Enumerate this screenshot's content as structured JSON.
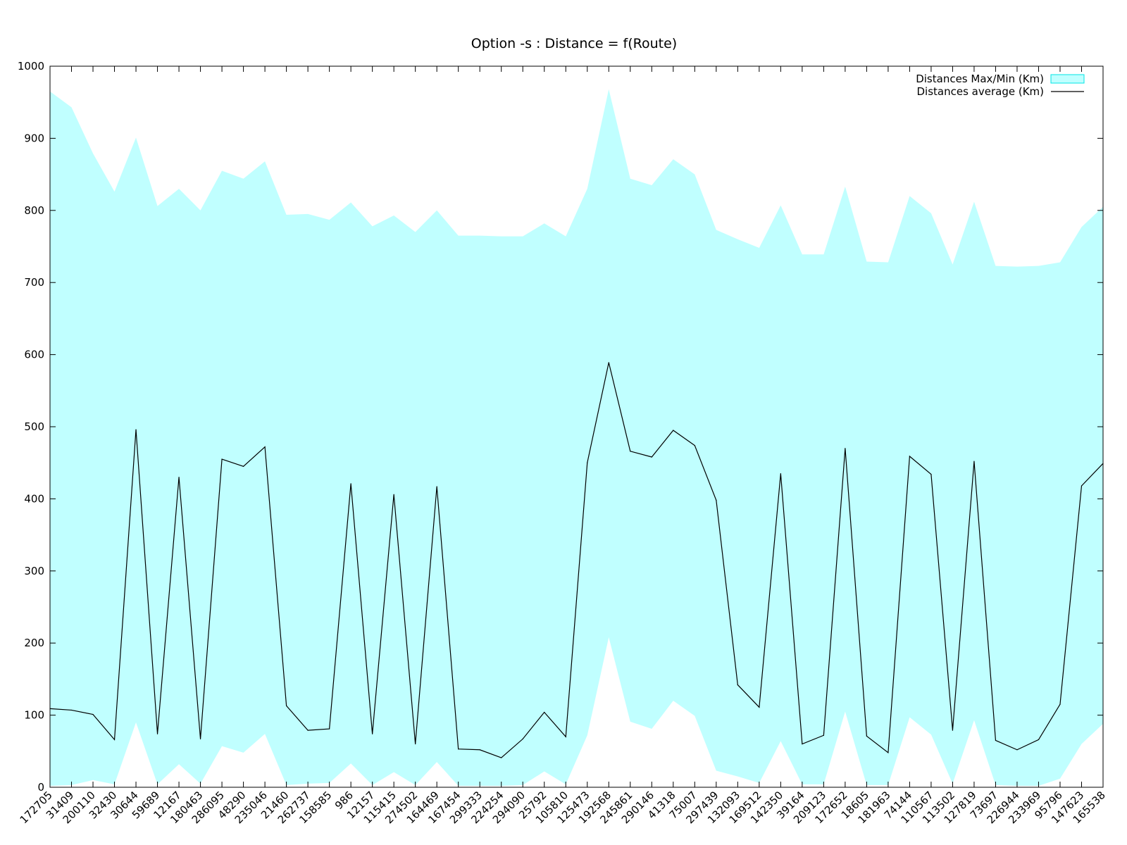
{
  "chart_data": {
    "type": "area",
    "title": "Option -s : Distance = f(Route)",
    "xlabel": "",
    "ylabel": "",
    "ylim": [
      0,
      1000
    ],
    "yticks": [
      0,
      100,
      200,
      300,
      400,
      500,
      600,
      700,
      800,
      900,
      1000
    ],
    "grid": false,
    "legend_position": "top-right",
    "categories": [
      "172705",
      "31409",
      "200110",
      "32430",
      "30644",
      "59689",
      "12167",
      "180463",
      "286095",
      "48290",
      "235046",
      "21460",
      "262737",
      "158585",
      "986",
      "12157",
      "115415",
      "274502",
      "164469",
      "167454",
      "299333",
      "224254",
      "294090",
      "25792",
      "105810",
      "125473",
      "192568",
      "245861",
      "290146",
      "41318",
      "75007",
      "297439",
      "132093",
      "169512",
      "142350",
      "39164",
      "209123",
      "172652",
      "18605",
      "181963",
      "74144",
      "110567",
      "113502",
      "127819",
      "73697",
      "226944",
      "233969",
      "95796",
      "147623",
      "165538"
    ],
    "series": [
      {
        "name": "Distances Max/Min (Km)",
        "kind": "band",
        "color": "#c0ffff",
        "legend_border": "#00e5e5",
        "max": [
          965,
          943,
          879,
          826,
          901,
          806,
          830,
          800,
          855,
          844,
          868,
          794,
          795,
          787,
          811,
          778,
          793,
          770,
          800,
          765,
          765,
          764,
          764,
          782,
          764,
          830,
          968,
          844,
          835,
          871,
          850,
          773,
          760,
          748,
          807,
          739,
          739,
          833,
          729,
          728,
          820,
          796,
          725,
          812,
          723,
          722,
          723,
          728,
          777,
          805
        ],
        "min": [
          2,
          3,
          10,
          4,
          90,
          4,
          32,
          5,
          57,
          48,
          74,
          3,
          5,
          6,
          33,
          3,
          21,
          3,
          35,
          2,
          2,
          2,
          3,
          22,
          4,
          72,
          208,
          91,
          81,
          120,
          99,
          23,
          15,
          6,
          64,
          4,
          4,
          105,
          3,
          3,
          97,
          73,
          5,
          93,
          3,
          2,
          2,
          12,
          60,
          88
        ]
      },
      {
        "name": "Distances average (Km)",
        "kind": "line",
        "color": "#000000",
        "values": [
          109,
          107,
          101,
          66,
          496,
          74,
          430,
          67,
          455,
          445,
          472,
          113,
          79,
          81,
          421,
          74,
          406,
          60,
          417,
          53,
          52,
          41,
          67,
          104,
          70,
          450,
          589,
          466,
          458,
          495,
          474,
          398,
          142,
          111,
          435,
          60,
          72,
          470,
          71,
          48,
          459,
          434,
          79,
          452,
          65,
          52,
          66,
          115,
          418,
          449
        ]
      }
    ]
  }
}
